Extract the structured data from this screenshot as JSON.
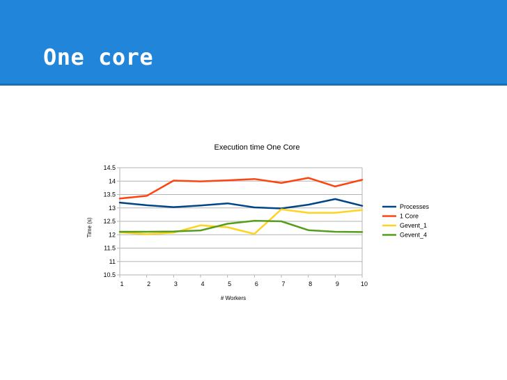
{
  "slide": {
    "title": "One core",
    "banner_color": "#2186d9"
  },
  "chart_data": {
    "type": "line",
    "title": "Execution time One Core",
    "xlabel": "# Workers",
    "ylabel": "Time (s)",
    "x": [
      1,
      2,
      3,
      4,
      5,
      6,
      7,
      8,
      9,
      10
    ],
    "ylim": [
      10.5,
      14.5
    ],
    "yticks": [
      10.5,
      11,
      11.5,
      12,
      12.5,
      13,
      13.5,
      14,
      14.5
    ],
    "ytick_labels": [
      "10.5",
      "11",
      "11.5",
      "12",
      "12.5",
      "13",
      "13.5",
      "14",
      "14.5"
    ],
    "grid": true,
    "legend_position": "right",
    "series": [
      {
        "name": "Processes",
        "color": "#004586",
        "values": [
          13.2,
          13.1,
          13.03,
          13.09,
          13.17,
          13.02,
          12.98,
          13.12,
          13.33,
          13.08
        ]
      },
      {
        "name": "1 Core",
        "color": "#ff420e",
        "values": [
          13.35,
          13.45,
          14.02,
          13.99,
          14.03,
          14.08,
          13.93,
          14.12,
          13.8,
          14.05
        ]
      },
      {
        "name": "Gevent_1",
        "color": "#ffd320",
        "values": [
          12.09,
          12.02,
          12.08,
          12.35,
          12.28,
          12.03,
          12.95,
          12.82,
          12.82,
          12.92
        ]
      },
      {
        "name": "Gevent_4",
        "color": "#579d1c",
        "values": [
          12.11,
          12.11,
          12.12,
          12.16,
          12.41,
          12.52,
          12.5,
          12.17,
          12.11,
          12.1
        ]
      }
    ]
  }
}
